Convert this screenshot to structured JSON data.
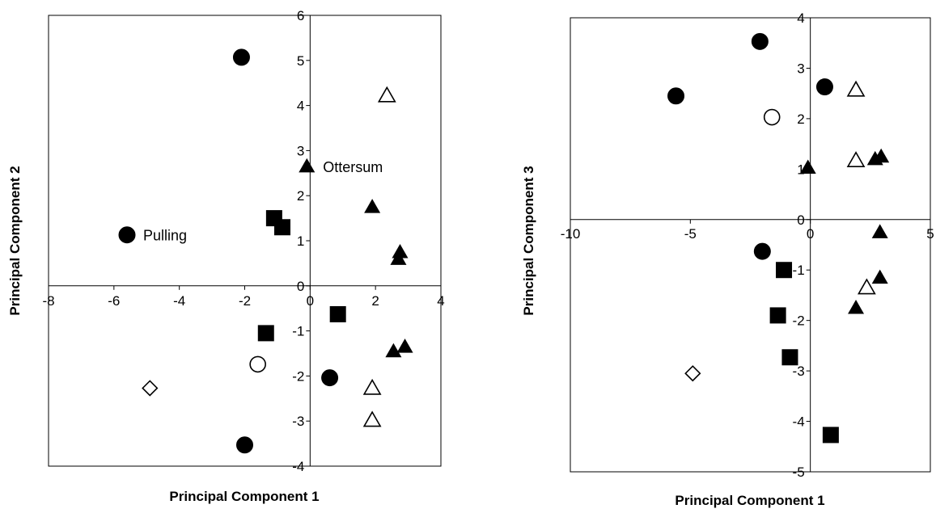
{
  "chart_data": [
    {
      "type": "scatter",
      "xlabel": "Principal Component 1",
      "ylabel": "Principal Component 2",
      "xlim": [
        -8,
        4
      ],
      "ylim": [
        -4,
        6
      ],
      "xticks": [
        -8,
        -6,
        -4,
        -2,
        0,
        2,
        4
      ],
      "yticks": [
        -4,
        -3,
        -2,
        -1,
        0,
        1,
        2,
        3,
        4,
        5,
        6
      ],
      "grid": false,
      "series": [
        {
          "marker": "filled-circle",
          "points": [
            [
              -2.1,
              5.07
            ],
            [
              -5.6,
              1.13
            ],
            [
              -2.0,
              -3.53
            ],
            [
              0.6,
              -2.04
            ]
          ]
        },
        {
          "marker": "open-circle",
          "points": [
            [
              -1.6,
              -1.74
            ]
          ]
        },
        {
          "marker": "filled-square",
          "points": [
            [
              -1.1,
              1.5
            ],
            [
              -0.85,
              1.3
            ],
            [
              0.85,
              -0.63
            ],
            [
              -1.35,
              -1.05
            ]
          ]
        },
        {
          "marker": "filled-triangle",
          "points": [
            [
              -0.1,
              2.65
            ],
            [
              1.9,
              1.75
            ],
            [
              2.75,
              0.75
            ],
            [
              2.7,
              0.6
            ],
            [
              2.55,
              -1.45
            ],
            [
              2.9,
              -1.35
            ]
          ]
        },
        {
          "marker": "open-triangle",
          "points": [
            [
              2.35,
              4.22
            ],
            [
              1.9,
              -2.27
            ],
            [
              1.9,
              -2.98
            ]
          ]
        },
        {
          "marker": "open-diamond",
          "points": [
            [
              -4.9,
              -2.27
            ]
          ]
        }
      ],
      "annotations": [
        {
          "text": "Pulling",
          "x": -5.6,
          "y": 1.13
        },
        {
          "text": "Ottersum",
          "x": -0.1,
          "y": 2.65
        }
      ]
    },
    {
      "type": "scatter",
      "xlabel": "Principal Component 1",
      "ylabel": "Principal Component 3",
      "xlim": [
        -10,
        5
      ],
      "ylim": [
        -5,
        4
      ],
      "xticks": [
        -10,
        -5,
        0,
        5
      ],
      "yticks": [
        -5,
        -4,
        -3,
        -2,
        -1,
        0,
        1,
        2,
        3,
        4
      ],
      "grid": false,
      "series": [
        {
          "marker": "filled-circle",
          "points": [
            [
              -5.6,
              2.45
            ],
            [
              -2.1,
              3.53
            ],
            [
              0.6,
              2.63
            ],
            [
              -2.0,
              -0.63
            ]
          ]
        },
        {
          "marker": "open-circle",
          "points": [
            [
              -1.6,
              2.03
            ]
          ]
        },
        {
          "marker": "filled-square",
          "points": [
            [
              -1.1,
              -1.0
            ],
            [
              -1.35,
              -1.9
            ],
            [
              -0.85,
              -2.73
            ],
            [
              0.85,
              -4.27
            ]
          ]
        },
        {
          "marker": "filled-triangle",
          "points": [
            [
              -0.1,
              1.03
            ],
            [
              2.7,
              1.2
            ],
            [
              2.95,
              1.25
            ],
            [
              2.9,
              -0.25
            ],
            [
              2.9,
              -1.15
            ],
            [
              1.9,
              -1.75
            ]
          ]
        },
        {
          "marker": "open-triangle",
          "points": [
            [
              1.9,
              2.57
            ],
            [
              1.9,
              1.17
            ],
            [
              2.35,
              -1.35
            ]
          ]
        },
        {
          "marker": "open-diamond",
          "points": [
            [
              -4.9,
              -3.05
            ]
          ]
        }
      ],
      "annotations": []
    }
  ]
}
